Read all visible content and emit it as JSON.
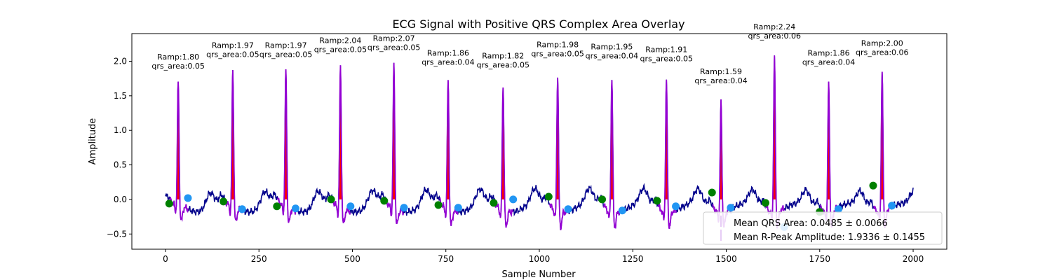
{
  "chart_data": {
    "type": "line",
    "title": "ECG Signal with Positive QRS Complex Area Overlay",
    "xlabel": "Sample Number",
    "ylabel": "Amplitude",
    "xlim": [
      -90,
      2090
    ],
    "ylim": [
      -0.72,
      2.4
    ],
    "xticks": [
      0,
      250,
      500,
      750,
      1000,
      1250,
      1500,
      1750,
      2000
    ],
    "yticks": [
      -0.5,
      0.0,
      0.5,
      1.0,
      1.5,
      2.0
    ],
    "xtick_labels": [
      "0",
      "250",
      "500",
      "750",
      "1000",
      "1250",
      "1500",
      "1750",
      "2000"
    ],
    "ytick_labels": [
      "−0.5",
      "0.0",
      "0.5",
      "1.0",
      "1.5",
      "2.0"
    ],
    "grid": false,
    "legend_position": "lower-right",
    "colors": {
      "signal": "#00008b",
      "qrs_segment": "#9400d3",
      "qrs_fill": "#ff0000",
      "q_marker": "#008000",
      "s_marker": "#2196f3",
      "legend_swatch": "#e6ccf5"
    },
    "beats": [
      {
        "r_x": 34,
        "ramp": 1.8,
        "ramp_label": "Ramp:1.80",
        "area_label": "qrs_area:0.05",
        "q": [
          10,
          -0.06
        ],
        "s": [
          60,
          0.02
        ]
      },
      {
        "r_x": 180,
        "ramp": 1.97,
        "ramp_label": "Ramp:1.97",
        "area_label": "qrs_area:0.05",
        "q": [
          155,
          -0.03
        ],
        "s": [
          205,
          -0.14
        ]
      },
      {
        "r_x": 322,
        "ramp": 1.97,
        "ramp_label": "Ramp:1.97",
        "area_label": "qrs_area:0.05",
        "q": [
          298,
          -0.1
        ],
        "s": [
          348,
          -0.13
        ]
      },
      {
        "r_x": 468,
        "ramp": 2.04,
        "ramp_label": "Ramp:2.04",
        "area_label": "qrs_area:0.05",
        "q": [
          443,
          0.0
        ],
        "s": [
          495,
          -0.1
        ]
      },
      {
        "r_x": 611,
        "ramp": 2.07,
        "ramp_label": "Ramp:2.07",
        "area_label": "qrs_area:0.05",
        "q": [
          585,
          -0.02
        ],
        "s": [
          638,
          -0.12
        ]
      },
      {
        "r_x": 756,
        "ramp": 1.86,
        "ramp_label": "Ramp:1.86",
        "area_label": "qrs_area:0.04",
        "q": [
          730,
          -0.08
        ],
        "s": [
          783,
          -0.12
        ]
      },
      {
        "r_x": 903,
        "ramp": 1.82,
        "ramp_label": "Ramp:1.82",
        "area_label": "qrs_area:0.05",
        "q": [
          878,
          -0.05
        ],
        "s": [
          930,
          0.0
        ]
      },
      {
        "r_x": 1049,
        "ramp": 1.98,
        "ramp_label": "Ramp:1.98",
        "area_label": "qrs_area:0.05",
        "q": [
          1025,
          0.04
        ],
        "s": [
          1077,
          -0.14
        ]
      },
      {
        "r_x": 1194,
        "ramp": 1.95,
        "ramp_label": "Ramp:1.95",
        "area_label": "qrs_area:0.04",
        "q": [
          1168,
          0.0
        ],
        "s": [
          1222,
          -0.16
        ]
      },
      {
        "r_x": 1340,
        "ramp": 1.91,
        "ramp_label": "Ramp:1.91",
        "area_label": "qrs_area:0.05",
        "q": [
          1315,
          -0.02
        ],
        "s": [
          1365,
          -0.1
        ]
      },
      {
        "r_x": 1486,
        "ramp": 1.59,
        "ramp_label": "Ramp:1.59",
        "area_label": "qrs_area:0.04",
        "q": [
          1462,
          0.1
        ],
        "s": [
          1512,
          -0.12
        ]
      },
      {
        "r_x": 1629,
        "ramp": 2.24,
        "ramp_label": "Ramp:2.24",
        "area_label": "qrs_area:0.06",
        "q": [
          1605,
          -0.05
        ],
        "s": [
          1655,
          -0.4
        ]
      },
      {
        "r_x": 1774,
        "ramp": 1.86,
        "ramp_label": "Ramp:1.86",
        "area_label": "qrs_area:0.04",
        "q": [
          1750,
          -0.18
        ],
        "s": [
          1800,
          -0.14
        ]
      },
      {
        "r_x": 1917,
        "ramp": 2.0,
        "ramp_label": "Ramp:2.00",
        "area_label": "qrs_area:0.06",
        "q": [
          1893,
          0.2
        ],
        "s": [
          1943,
          -0.09
        ]
      }
    ],
    "legend": [
      {
        "label": "Mean QRS Area: 0.0485 ± 0.0066"
      },
      {
        "label": "Mean R-Peak Amplitude: 1.9336 ± 0.1455"
      }
    ]
  }
}
